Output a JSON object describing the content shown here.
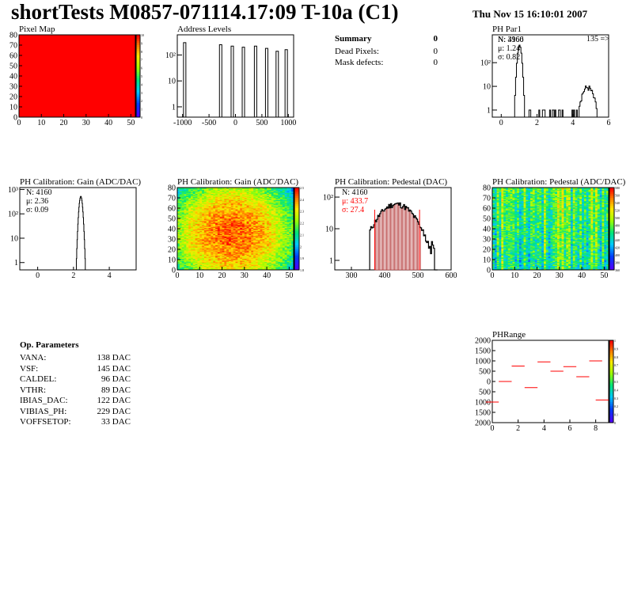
{
  "header": {
    "title": "shortTests M0857-071114.17:09 T-10a (C1)",
    "date": "Thu Nov 15 16:10:01 2007"
  },
  "summary": {
    "title": "Summary",
    "title_value": "0",
    "rows": [
      {
        "label": "Dead Pixels:",
        "value": "0"
      },
      {
        "label": "Mask defects:",
        "value": "0"
      }
    ]
  },
  "op_parameters": {
    "title": "Op. Parameters",
    "rows": [
      {
        "label": "VANA:",
        "value": "138 DAC"
      },
      {
        "label": "VSF:",
        "value": "145 DAC"
      },
      {
        "label": "CALDEL:",
        "value": "96 DAC"
      },
      {
        "label": "VTHR:",
        "value": "89 DAC"
      },
      {
        "label": "IBIAS_DAC:",
        "value": "122 DAC"
      },
      {
        "label": "VIBIAS_PH:",
        "value": "229 DAC"
      },
      {
        "label": "VOFFSETOP:",
        "value": "33 DAC"
      }
    ]
  },
  "colors": {
    "red": "#ff0000",
    "hist": "#000000",
    "pedestal_fill": "#aa2222",
    "fit": "#ff0000"
  },
  "chart_data": [
    {
      "id": "pixel_map",
      "type": "heatmap",
      "title": "Pixel Map",
      "xlim": [
        0,
        52
      ],
      "ylim": [
        0,
        80
      ],
      "xticks": [
        "0",
        "10",
        "20",
        "30",
        "40",
        "50"
      ],
      "yticks": [
        "0",
        "10",
        "20",
        "30",
        "40",
        "50",
        "60",
        "70",
        "80"
      ],
      "uniform_value": 10,
      "zticks": [
        "10",
        "9",
        "8",
        "7",
        "6",
        "5",
        "4",
        "3",
        "2",
        "1",
        "0"
      ]
    },
    {
      "id": "address_levels",
      "type": "bar",
      "title": "Address Levels",
      "log_y": true,
      "xlim": [
        -1100,
        1100
      ],
      "xticks": [
        "-1000",
        "-500",
        "0",
        "500",
        "1000"
      ],
      "yticks": [
        "1",
        "10",
        "10²"
      ],
      "peaks": [
        {
          "x": -960,
          "y": 300
        },
        {
          "x": -280,
          "y": 250
        },
        {
          "x": -60,
          "y": 220
        },
        {
          "x": 150,
          "y": 200
        },
        {
          "x": 380,
          "y": 220
        },
        {
          "x": 590,
          "y": 180
        },
        {
          "x": 790,
          "y": 140
        },
        {
          "x": 960,
          "y": 160
        }
      ]
    },
    {
      "id": "ph_par1",
      "type": "bar",
      "title": "PH Par1",
      "log_y": true,
      "xlim": [
        -0.5,
        6
      ],
      "xticks": [
        "0",
        "2",
        "4",
        "6"
      ],
      "yticks": [
        "1",
        "10",
        "10²"
      ],
      "stats": [
        "N: 3966",
        "μ: 1.24",
        "σ: 0.82"
      ],
      "stats_overlap": "N: 4160",
      "overflow_label": "135 =>",
      "peak1": {
        "center": 1.0,
        "height": 550,
        "width": 0.08
      },
      "peak2": {
        "center": 4.8,
        "height": 9,
        "width": 0.25
      }
    },
    {
      "id": "gain_hist",
      "type": "bar",
      "title": "PH Calibration: Gain (ADC/DAC)",
      "log_y": true,
      "xlim": [
        -1,
        5.5
      ],
      "xticks": [
        "0",
        "2",
        "4"
      ],
      "yticks": [
        "1",
        "10",
        "10²",
        "10³"
      ],
      "stats": [
        "N: 4160",
        "μ: 2.36",
        "σ: 0.09"
      ],
      "peak": {
        "center": 2.4,
        "height": 520,
        "width": 0.07
      }
    },
    {
      "id": "gain_map",
      "type": "heatmap",
      "title": "PH Calibration: Gain (ADC/DAC)",
      "xlim": [
        0,
        52
      ],
      "ylim": [
        0,
        80
      ],
      "xticks": [
        "0",
        "10",
        "20",
        "30",
        "40",
        "50"
      ],
      "yticks": [
        "0",
        "10",
        "20",
        "30",
        "40",
        "50",
        "60",
        "70",
        "80"
      ],
      "zticks": [
        "2.5",
        "2.4",
        "2.3",
        "2.2",
        "2.1",
        "2",
        "1.9",
        "1.8"
      ]
    },
    {
      "id": "pedestal_hist",
      "type": "bar",
      "title": "PH Calibration: Pedestal (DAC)",
      "log_y": true,
      "xlim": [
        250,
        600
      ],
      "xticks": [
        "300",
        "400",
        "500",
        "600"
      ],
      "yticks": [
        "1",
        "10",
        "10²"
      ],
      "stats": [
        "N: 4160",
        "μ: 433.7",
        "σ: 27.4"
      ],
      "fit_range": [
        370,
        505
      ],
      "peak": {
        "center": 433.7,
        "height": 60,
        "width": 40
      }
    },
    {
      "id": "pedestal_map",
      "type": "heatmap",
      "title": "PH Calibration: Pedestal (ADC/DAC)",
      "xlim": [
        0,
        52
      ],
      "ylim": [
        0,
        80
      ],
      "xticks": [
        "0",
        "10",
        "20",
        "30",
        "40",
        "50"
      ],
      "yticks": [
        "0",
        "10",
        "20",
        "30",
        "40",
        "50",
        "60",
        "70",
        "80"
      ],
      "zticks": [
        "580",
        "560",
        "540",
        "520",
        "500",
        "480",
        "460",
        "440",
        "420",
        "400",
        "380",
        "360"
      ]
    },
    {
      "id": "ph_range",
      "type": "bar",
      "title": "PHRange",
      "xlim": [
        0,
        9
      ],
      "ylim": [
        -2000,
        2000
      ],
      "xticks": [
        "0",
        "2",
        "4",
        "6",
        "8"
      ],
      "yticks": [
        "2000",
        "1500",
        "1000",
        "500",
        "0",
        "500",
        "1000",
        "1500",
        "2000"
      ],
      "values": [
        -1000,
        0,
        750,
        -300,
        950,
        500,
        720,
        230,
        1000
      ],
      "low_at_8": -900,
      "zticks": [
        "1",
        "0.9",
        "0.8",
        "0.7",
        "0.6",
        "0.5",
        "0.4",
        "0.3",
        "0.2",
        "0.1",
        "0"
      ]
    }
  ]
}
